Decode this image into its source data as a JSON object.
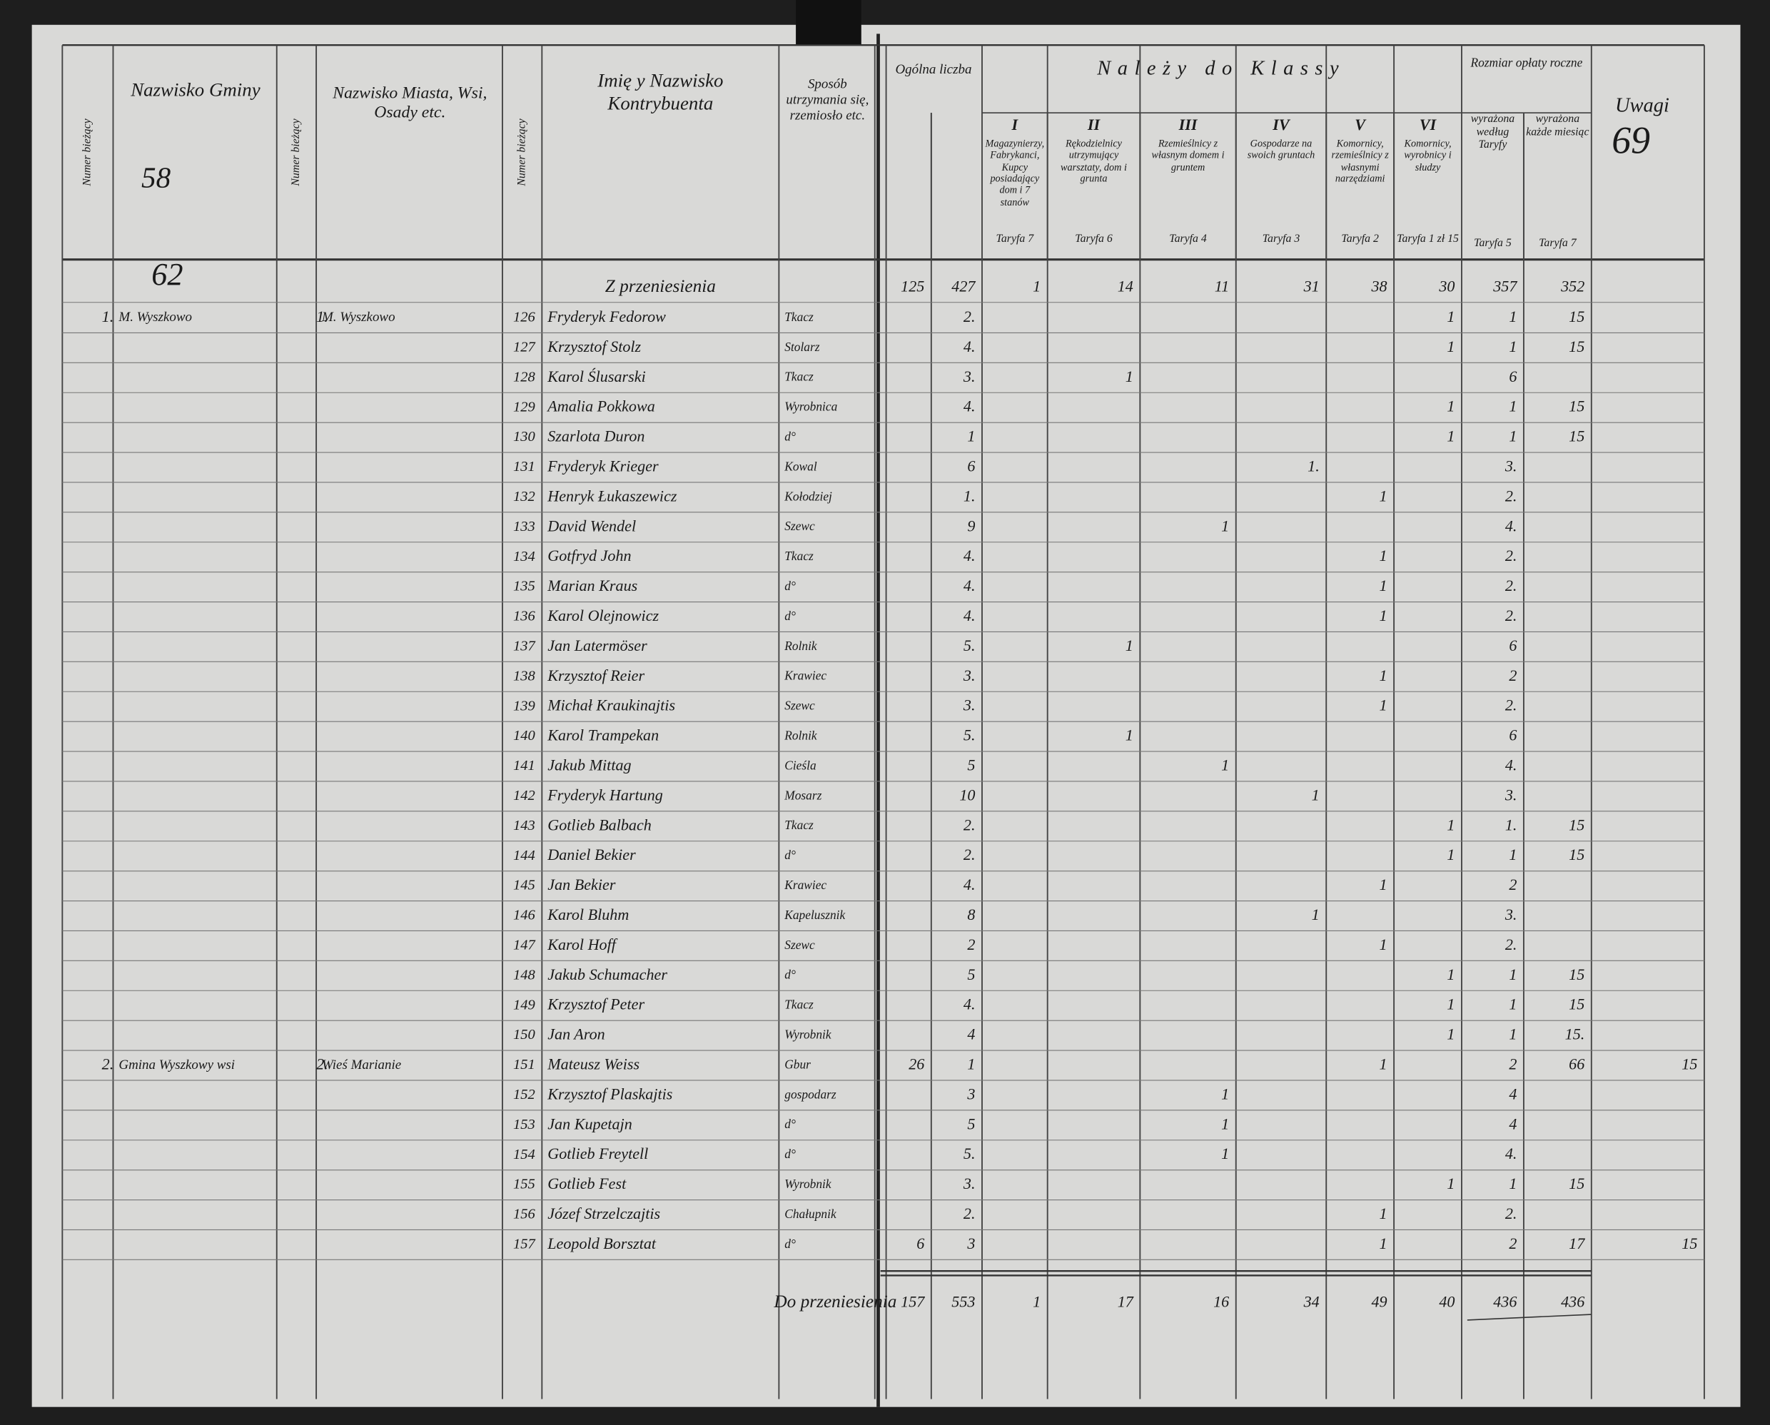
{
  "page_number": "69",
  "gmina_mark": "62",
  "header": {
    "gm_nr": "Numer bieżący",
    "gmina": "Nazwisko Gminy",
    "gmina_no": "58",
    "m_nr": "Numer bieżący",
    "miasto": "Nazwisko Miasta, Wsi, Osady etc.",
    "nr": "Numer bieżący",
    "kontrybuent": "Imię y Nazwisko Kontrybuenta",
    "sposob": "Sposób utrzymania się, rzemiosło etc.",
    "ogolna": "Ogólna liczba",
    "klassy": "Należy do Klassy",
    "classes": [
      {
        "numeral": "I",
        "desc": "Magazynierzy, Fabrykanci, Kupcy posiadający dom i 7 stanów",
        "taryfa": "Taryfa 7"
      },
      {
        "numeral": "II",
        "desc": "Rękodzielnicy utrzymujący warsztaty, dom i grunta",
        "taryfa": "Taryfa 6"
      },
      {
        "numeral": "III",
        "desc": "Rzemieślnicy z własnym domem i gruntem",
        "taryfa": "Taryfa 4"
      },
      {
        "numeral": "IV",
        "desc": "Gospodarze na swoich gruntach",
        "taryfa": "Taryfa 3"
      },
      {
        "numeral": "V",
        "desc": "Komornicy, rzemieślnicy z własnymi narzędziami",
        "taryfa": "Taryfa 2"
      },
      {
        "numeral": "VI",
        "desc": "Komornicy, wyrobnicy i słudzy",
        "taryfa": "Taryfa 1 zł 15"
      }
    ],
    "oplata": "Rozmiar opłaty roczne",
    "oplata_cols": [
      {
        "desc": "wyrażona według Taryfy",
        "taryfa": "Taryfa 5"
      },
      {
        "desc": "wyrażona każde miesiąc",
        "taryfa": "Taryfa 7"
      }
    ],
    "uwagi": "Uwagi"
  },
  "table": {
    "carried": {
      "kontrybuent": "Z przeniesienia",
      "ogolna_1": "125",
      "ogolna_2": "427",
      "kl_I": "1",
      "kl_II": "14",
      "kl_III": "11",
      "kl_IV": "31",
      "kl_V": "38",
      "kl_VI": "30",
      "oplata_1": "357",
      "oplata_2": "352"
    },
    "rows": [
      {
        "gm_nr": "1.",
        "gmina": "M. Wyszkowo",
        "m_nr": "1.",
        "miasto": "M. Wyszkowo",
        "nr": "126",
        "kontrybuent": "Fryderyk Fedorow",
        "sposob": "Tkacz",
        "ogolna_2": "2.",
        "kl_VI": "1",
        "oplata_1": "1",
        "oplata_2": "15"
      },
      {
        "nr": "127",
        "kontrybuent": "Krzysztof Stolz",
        "sposob": "Stolarz",
        "ogolna_2": "4.",
        "kl_VI": "1",
        "oplata_1": "1",
        "oplata_2": "15"
      },
      {
        "nr": "128",
        "kontrybuent": "Karol Ślusarski",
        "sposob": "Tkacz",
        "ogolna_2": "3.",
        "kl_II": "1",
        "oplata_1": "6"
      },
      {
        "nr": "129",
        "kontrybuent": "Amalia Pokkowa",
        "sposob": "Wyrobnica",
        "ogolna_2": "4.",
        "kl_VI": "1",
        "oplata_1": "1",
        "oplata_2": "15"
      },
      {
        "nr": "130",
        "kontrybuent": "Szarlota Duron",
        "sposob": "d°",
        "ogolna_2": "1",
        "kl_VI": "1",
        "oplata_1": "1",
        "oplata_2": "15"
      },
      {
        "nr": "131",
        "kontrybuent": "Fryderyk Krieger",
        "sposob": "Kowal",
        "ogolna_2": "6",
        "kl_IV": "1.",
        "oplata_1": "3."
      },
      {
        "nr": "132",
        "kontrybuent": "Henryk Łukaszewicz",
        "sposob": "Kołodziej",
        "ogolna_2": "1.",
        "kl_V": "1",
        "oplata_1": "2."
      },
      {
        "nr": "133",
        "kontrybuent": "David Wendel",
        "sposob": "Szewc",
        "ogolna_2": "9",
        "kl_III": "1",
        "oplata_1": "4."
      },
      {
        "nr": "134",
        "kontrybuent": "Gotfryd John",
        "sposob": "Tkacz",
        "ogolna_2": "4.",
        "kl_V": "1",
        "oplata_1": "2."
      },
      {
        "nr": "135",
        "kontrybuent": "Marian Kraus",
        "sposob": "d°",
        "ogolna_2": "4.",
        "kl_V": "1",
        "oplata_1": "2."
      },
      {
        "nr": "136",
        "kontrybuent": "Karol Olejnowicz",
        "sposob": "d°",
        "ogolna_2": "4.",
        "kl_V": "1",
        "oplata_1": "2."
      },
      {
        "nr": "137",
        "kontrybuent": "Jan Latermöser",
        "sposob": "Rolnik",
        "ogolna_2": "5.",
        "kl_II": "1",
        "oplata_1": "6"
      },
      {
        "nr": "138",
        "kontrybuent": "Krzysztof Reier",
        "sposob": "Krawiec",
        "ogolna_2": "3.",
        "kl_V": "1",
        "oplata_1": "2"
      },
      {
        "nr": "139",
        "kontrybuent": "Michał Kraukinajtis",
        "sposob": "Szewc",
        "ogolna_2": "3.",
        "kl_V": "1",
        "oplata_1": "2."
      },
      {
        "nr": "140",
        "kontrybuent": "Karol Trampekan",
        "sposob": "Rolnik",
        "ogolna_2": "5.",
        "kl_II": "1",
        "oplata_1": "6"
      },
      {
        "nr": "141",
        "kontrybuent": "Jakub Mittag",
        "sposob": "Cieśla",
        "ogolna_2": "5",
        "kl_III": "1",
        "oplata_1": "4."
      },
      {
        "nr": "142",
        "kontrybuent": "Fryderyk Hartung",
        "sposob": "Mosarz",
        "ogolna_2": "10",
        "kl_IV": "1",
        "oplata_1": "3."
      },
      {
        "nr": "143",
        "kontrybuent": "Gotlieb Balbach",
        "sposob": "Tkacz",
        "ogolna_2": "2.",
        "kl_VI": "1",
        "oplata_1": "1.",
        "oplata_2": "15"
      },
      {
        "nr": "144",
        "kontrybuent": "Daniel Bekier",
        "sposob": "d°",
        "ogolna_2": "2.",
        "kl_VI": "1",
        "oplata_1": "1",
        "oplata_2": "15"
      },
      {
        "nr": "145",
        "kontrybuent": "Jan Bekier",
        "sposob": "Krawiec",
        "ogolna_2": "4.",
        "kl_V": "1",
        "oplata_1": "2"
      },
      {
        "nr": "146",
        "kontrybuent": "Karol Bluhm",
        "sposob": "Kapelusznik",
        "ogolna_2": "8",
        "kl_IV": "1",
        "oplata_1": "3."
      },
      {
        "nr": "147",
        "kontrybuent": "Karol Hoff",
        "sposob": "Szewc",
        "ogolna_2": "2",
        "kl_V": "1",
        "oplata_1": "2."
      },
      {
        "nr": "148",
        "kontrybuent": "Jakub Schumacher",
        "sposob": "d°",
        "ogolna_2": "5",
        "kl_VI": "1",
        "oplata_1": "1",
        "oplata_2": "15"
      },
      {
        "nr": "149",
        "kontrybuent": "Krzysztof Peter",
        "sposob": "Tkacz",
        "ogolna_2": "4.",
        "kl_VI": "1",
        "oplata_1": "1",
        "oplata_2": "15"
      },
      {
        "nr": "150",
        "kontrybuent": "Jan Aron",
        "sposob": "Wyrobnik",
        "ogolna_2": "4",
        "kl_VI": "1",
        "oplata_1": "1",
        "oplata_2": "15."
      },
      {
        "gm_nr": "2.",
        "gmina": "Gmina Wyszkowy wsi",
        "m_nr": "2.",
        "miasto": "Wieś Marianie",
        "nr": "151",
        "kontrybuent": "Mateusz Weiss",
        "sposob": "Gbur",
        "ogolna_1": "26",
        "ogolna_2": "1",
        "kl_V": "1",
        "oplata_1": "2",
        "oplata_2": "66",
        "uwagi": "15"
      },
      {
        "nr": "152",
        "kontrybuent": "Krzysztof Plaskajtis",
        "sposob": "gospodarz",
        "ogolna_2": "3",
        "kl_III": "1",
        "oplata_1": "4"
      },
      {
        "nr": "153",
        "kontrybuent": "Jan Kupetajn",
        "sposob": "d°",
        "ogolna_2": "5",
        "kl_III": "1",
        "oplata_1": "4"
      },
      {
        "nr": "154",
        "kontrybuent": "Gotlieb Freytell",
        "sposob": "d°",
        "ogolna_2": "5.",
        "kl_III": "1",
        "oplata_1": "4."
      },
      {
        "nr": "155",
        "kontrybuent": "Gotlieb Fest",
        "sposob": "Wyrobnik",
        "ogolna_2": "3.",
        "kl_VI": "1",
        "oplata_1": "1",
        "oplata_2": "15"
      },
      {
        "nr": "156",
        "kontrybuent": "Józef Strzelczajtis",
        "sposob": "Chałupnik",
        "ogolna_2": "2.",
        "kl_V": "1",
        "oplata_1": "2."
      },
      {
        "nr": "157",
        "kontrybuent": "Leopold Borsztat",
        "sposob": "d°",
        "ogolna_1": "6",
        "ogolna_2": "3",
        "kl_V": "1",
        "oplata_1": "2",
        "oplata_2": "17",
        "uwagi": "15"
      }
    ],
    "total": {
      "kontrybuent": "Do przeniesienia",
      "ogolna_1": "157",
      "ogolna_2": "553",
      "kl_I": "1",
      "kl_II": "17",
      "kl_III": "16",
      "kl_IV": "34",
      "kl_V": "49",
      "kl_VI": "40",
      "oplata_1": "436",
      "oplata_2": "436"
    }
  }
}
